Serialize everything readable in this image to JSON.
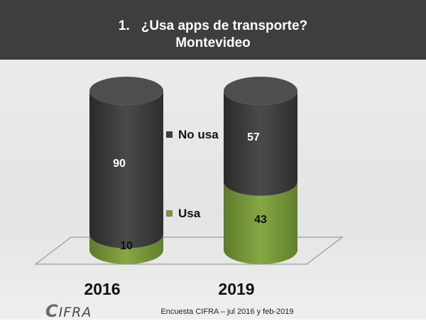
{
  "header": {
    "number": "1.",
    "title": "¿Usa apps de transporte?",
    "subtitle": "Montevideo"
  },
  "chart_data": {
    "type": "bar",
    "stacked": true,
    "categories": [
      "2016",
      "2019"
    ],
    "series": [
      {
        "name": "Usa",
        "values": [
          10,
          43
        ],
        "color": "#77983a"
      },
      {
        "name": "No usa",
        "values": [
          90,
          57
        ],
        "color": "#3c3c3c"
      }
    ],
    "ylim": [
      0,
      100
    ],
    "legend_position": "center",
    "grid": false
  },
  "footer": {
    "logo": "CIFRA",
    "source": "Encuesta CIFRA – jul 2016 y feb-2019"
  }
}
